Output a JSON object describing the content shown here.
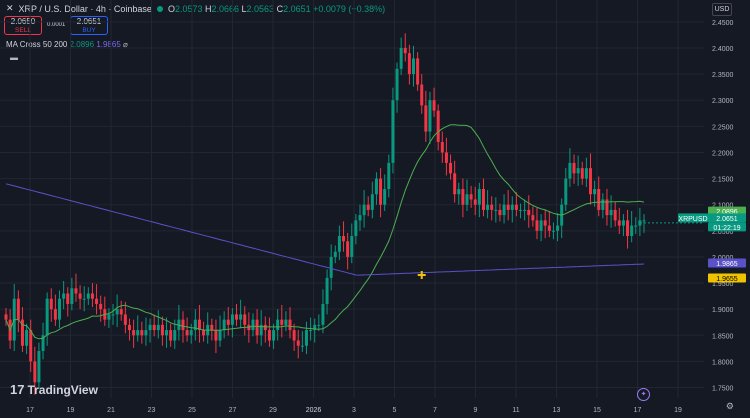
{
  "header": {
    "symbol_title": "XRP / U.S. Dollar · 4h · Coinbase",
    "ohlc": [
      {
        "k": "O",
        "v": "2.0573"
      },
      {
        "k": "H",
        "v": "2.0666"
      },
      {
        "k": "L",
        "v": "2.0563"
      },
      {
        "k": "C",
        "v": "2.0651"
      },
      {
        "k": "",
        "v": "+0.0079 (+0.38%)"
      }
    ]
  },
  "trade": {
    "sell_price": "2.0650",
    "sell_label": "SELL",
    "spread": "0.0001",
    "buy_price": "2.0651",
    "buy_label": "BUY"
  },
  "indicator": {
    "label": "MA Cross 50 200",
    "value_fast": "2.0896",
    "value_slow": "1.9865"
  },
  "currency": "USD",
  "branding": "TradingView",
  "colors": {
    "up": "#089981",
    "down": "#f23645",
    "ma_fast": "#4caf50",
    "ma_slow": "#5b52c9",
    "bg": "#151924",
    "grid": "#22262f"
  },
  "chart_data": {
    "type": "candlestick",
    "price_axis_ticks": [
      "2.4500",
      "2.4000",
      "2.3500",
      "2.3000",
      "2.2500",
      "2.2000",
      "2.1500",
      "2.1000",
      "2.0500",
      "2.0000",
      "1.9500",
      "1.9000",
      "1.8500",
      "1.8000",
      "1.7500"
    ],
    "time_axis_ticks": [
      "17",
      "19",
      "21",
      "23",
      "25",
      "27",
      "29",
      "2026",
      "3",
      "5",
      "7",
      "9",
      "11",
      "13",
      "15",
      "17",
      "19"
    ],
    "ylim": [
      1.73,
      2.465
    ],
    "price_labels": [
      {
        "text": "2.0896",
        "value": 2.0896,
        "color": "#4caf50"
      },
      {
        "text": "XRPUSD",
        "value": 2.0651,
        "color": "#089981"
      },
      {
        "text": "2.0651",
        "value": 2.0651,
        "color": "#089981"
      },
      {
        "text": "01:22:19",
        "value": 2.0651,
        "color": "#089981"
      },
      {
        "text": "1.9865",
        "value": 1.9865,
        "color": "#5b52c9"
      },
      {
        "text": "1.9655",
        "value": 1.9655,
        "color": "#f0c300"
      }
    ],
    "close_series": [
      1.88,
      1.84,
      1.92,
      1.88,
      1.83,
      1.86,
      1.8,
      1.76,
      1.82,
      1.85,
      1.92,
      1.9,
      1.88,
      1.92,
      1.93,
      1.91,
      1.94,
      1.93,
      1.92,
      1.92,
      1.93,
      1.92,
      1.91,
      1.9,
      1.88,
      1.89,
      1.89,
      1.9,
      1.89,
      1.87,
      1.86,
      1.85,
      1.86,
      1.85,
      1.86,
      1.87,
      1.86,
      1.87,
      1.85,
      1.86,
      1.84,
      1.86,
      1.88,
      1.86,
      1.85,
      1.86,
      1.88,
      1.86,
      1.85,
      1.87,
      1.86,
      1.84,
      1.86,
      1.88,
      1.87,
      1.89,
      1.88,
      1.89,
      1.87,
      1.86,
      1.88,
      1.85,
      1.87,
      1.86,
      1.84,
      1.86,
      1.88,
      1.87,
      1.88,
      1.86,
      1.84,
      1.83,
      1.83,
      1.86,
      1.86,
      1.87,
      1.87,
      1.91,
      1.96,
      2.0,
      2.01,
      2.04,
      2.03,
      2.0,
      2.04,
      2.07,
      2.08,
      2.1,
      2.09,
      2.12,
      2.15,
      2.1,
      2.13,
      2.18,
      2.3,
      2.36,
      2.4,
      2.39,
      2.35,
      2.38,
      2.33,
      2.29,
      2.24,
      2.3,
      2.28,
      2.22,
      2.2,
      2.18,
      2.16,
      2.12,
      2.13,
      2.1,
      2.12,
      2.11,
      2.1,
      2.13,
      2.09,
      2.1,
      2.09,
      2.09,
      2.08,
      2.1,
      2.09,
      2.1,
      2.09,
      2.09,
      2.09,
      2.08,
      2.07,
      2.05,
      2.07,
      2.06,
      2.05,
      2.05,
      2.06,
      2.1,
      2.15,
      2.18,
      2.16,
      2.17,
      2.15,
      2.17,
      2.12,
      2.13,
      2.09,
      2.11,
      2.08,
      2.09,
      2.07,
      2.06,
      2.07,
      2.04,
      2.06,
      2.06,
      2.07,
      2.07
    ],
    "ma_fast_end": 2.0896,
    "ma_slow_end": 1.9865,
    "cross_marker_value": 1.9655
  }
}
